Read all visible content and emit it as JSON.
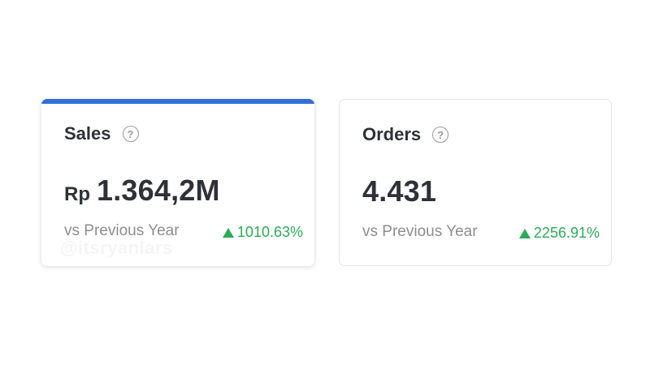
{
  "colors": {
    "accent": "#2f6fd6",
    "positive": "#2daa56"
  },
  "cards": [
    {
      "title": "Sales",
      "help_icon": "question-circle-icon",
      "currency": "Rp",
      "value": "1.364,2M",
      "compare_label": "vs Previous Year",
      "trend_icon": "triangle-up-icon",
      "change": "1010.63%",
      "selected": true
    },
    {
      "title": "Orders",
      "help_icon": "question-circle-icon",
      "value": "4.431",
      "compare_label": "vs Previous Year",
      "trend_icon": "triangle-up-icon",
      "change": "2256.91%",
      "selected": false
    }
  ],
  "watermark": "@itsryanlars"
}
